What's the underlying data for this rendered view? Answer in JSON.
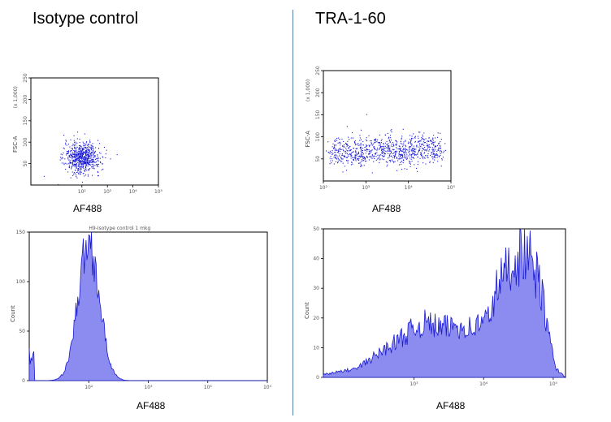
{
  "headings": {
    "left": "Isotype control",
    "right": "TRA-1-60"
  },
  "colors": {
    "dots": "#1b1bd6",
    "hist_fill": "#8c8cf0",
    "hist_line": "#1a1ad0",
    "divider": "#5b7fa6"
  },
  "chart_data": [
    {
      "type": "scatter",
      "panel": "left-dot-plot",
      "xlabel": "AF488",
      "ylabel": "FSC-A",
      "ylabel_unit": "(x 1,000)",
      "x_scale": "log",
      "xlim": [
        1,
        100000
      ],
      "ylim": [
        0,
        250
      ],
      "x_ticks": [
        "10²",
        "10³",
        "10⁴",
        "10⁵"
      ],
      "y_ticks": [
        "50",
        "100",
        "150",
        "200",
        "250"
      ],
      "cluster": {
        "x_center": 100,
        "x_spread_decades": 0.35,
        "y_center": 65,
        "y_spread": 18,
        "count": 700
      }
    },
    {
      "type": "scatter",
      "panel": "right-dot-plot",
      "xlabel": "AF488",
      "ylabel": "FSC-A",
      "ylabel_unit": "(x 1,000)",
      "x_scale": "log",
      "xlim": [
        100,
        100000
      ],
      "ylim": [
        0,
        250
      ],
      "x_ticks": [
        "10²",
        "10³",
        "10⁴",
        "10⁵"
      ],
      "y_ticks": [
        "50",
        "100",
        "150",
        "200",
        "250"
      ],
      "cluster": {
        "x_from": 150,
        "x_to": 60000,
        "y_center": 65,
        "y_spread": 16,
        "count": 900
      }
    },
    {
      "type": "area",
      "panel": "left-histogram",
      "title": "H9-Isotype control 1 mkg",
      "xlabel": "AF488",
      "ylabel": "Count",
      "x_scale": "log",
      "xlim": [
        10,
        100000
      ],
      "ylim": [
        0,
        150
      ],
      "x_ticks": [
        "10²",
        "10³",
        "10⁴",
        "10⁵"
      ],
      "y_ticks": [
        "0",
        "50",
        "100",
        "150"
      ],
      "peak": {
        "x": 100,
        "height": 150,
        "width_decades": 0.18
      }
    },
    {
      "type": "area",
      "panel": "right-histogram",
      "xlabel": "AF488",
      "ylabel": "Count",
      "x_scale": "log",
      "xlim": [
        50,
        150000
      ],
      "ylim": [
        0,
        50
      ],
      "x_ticks": [
        "10³",
        "10⁴",
        "10⁵"
      ],
      "y_ticks": [
        "0",
        "10",
        "20",
        "30",
        "40",
        "50"
      ],
      "profile": [
        [
          50,
          1
        ],
        [
          150,
          3
        ],
        [
          300,
          8
        ],
        [
          600,
          13
        ],
        [
          1000,
          17
        ],
        [
          1500,
          19
        ],
        [
          2500,
          17
        ],
        [
          4000,
          18
        ],
        [
          7000,
          17
        ],
        [
          12000,
          21
        ],
        [
          16000,
          32
        ],
        [
          25000,
          40
        ],
        [
          40000,
          44
        ],
        [
          55000,
          37
        ],
        [
          70000,
          28
        ],
        [
          90000,
          12
        ],
        [
          110000,
          3
        ],
        [
          150000,
          0
        ]
      ]
    }
  ],
  "axis_labels": {
    "left_dot": "AF488",
    "right_dot": "AF488",
    "left_hist": "AF488",
    "right_hist": "AF488"
  }
}
